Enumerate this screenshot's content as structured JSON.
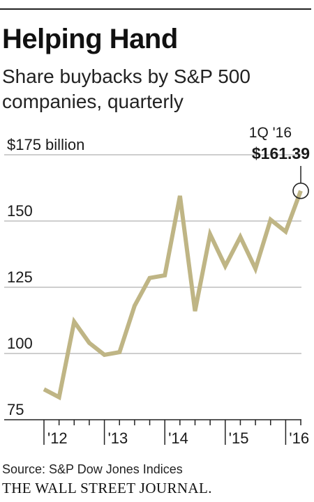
{
  "title": "Helping Hand",
  "subtitle": "Share buybacks by S&P 500 companies, quarterly",
  "source": "Source: S&P Dow Jones Indices",
  "brand": "THE WALL STREET JOURNAL.",
  "colors": {
    "line": "#bfb585",
    "grid": "#bdbdbd",
    "axis": "#222222",
    "text": "#1a1a1a"
  },
  "chart_data": {
    "type": "line",
    "title": "Helping Hand",
    "subtitle": "Share buybacks by S&P 500 companies, quarterly",
    "ylabel": "",
    "xlabel": "",
    "ylim": [
      75,
      175
    ],
    "y_ticks": [
      {
        "value": 175,
        "label": "$175 billion"
      },
      {
        "value": 150,
        "label": "150"
      },
      {
        "value": 125,
        "label": "125"
      },
      {
        "value": 100,
        "label": "100"
      },
      {
        "value": 75,
        "label": "75"
      }
    ],
    "x_ticks": [
      "'12",
      "'13",
      "'14",
      "'15",
      "'16"
    ],
    "grid": true,
    "series": [
      {
        "values": [
          86.5,
          83.5,
          112,
          104,
          99.5,
          100.5,
          118,
          128.5,
          129.5,
          159.5,
          116,
          145,
          133,
          144,
          132,
          150.5,
          146,
          161.39
        ]
      }
    ],
    "annotation": {
      "label": "1Q '16",
      "value_label": "$161.39",
      "index": 17
    }
  }
}
